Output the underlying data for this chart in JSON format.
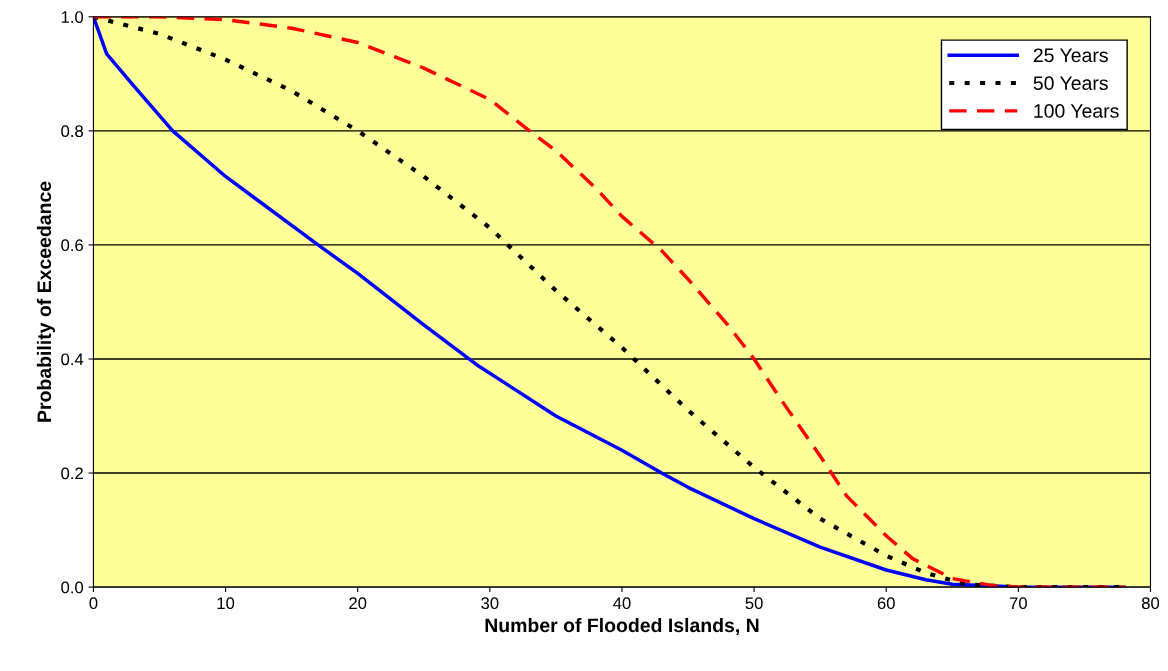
{
  "chart_data": {
    "type": "line",
    "xlabel": "Number of Flooded Islands, N",
    "ylabel": "Probability of Exceedance",
    "xlim": [
      0,
      80
    ],
    "xticks": [
      0,
      10,
      20,
      30,
      40,
      50,
      60,
      70,
      80
    ],
    "ylim": [
      0,
      1
    ],
    "yticks": [
      {
        "value": 0,
        "label": "0.0"
      },
      {
        "value": 0.2,
        "label": "0.2"
      },
      {
        "value": 0.4,
        "label": "0.4"
      },
      {
        "value": 0.6,
        "label": "0.6"
      },
      {
        "value": 0.8,
        "label": "0.8"
      },
      {
        "value": 1,
        "label": "1.0"
      }
    ],
    "grid": "y",
    "legend": "top right",
    "series": [
      {
        "name": "25 Years",
        "color": "#0000ff",
        "line_style": "solid",
        "x": [
          0,
          1,
          3,
          6,
          10,
          17,
          20,
          25,
          29,
          35,
          40,
          43,
          45,
          50,
          55,
          60,
          63,
          65,
          70,
          78
        ],
        "values": [
          1.0,
          0.935,
          0.88,
          0.8,
          0.72,
          0.6,
          0.55,
          0.46,
          0.39,
          0.3,
          0.24,
          0.2,
          0.175,
          0.12,
          0.07,
          0.03,
          0.013,
          0.005,
          0.0,
          0.0
        ]
      },
      {
        "name": "50 Years",
        "color": "#000000",
        "line_style": "dotted",
        "x": [
          0,
          5,
          10,
          15,
          20,
          25,
          30,
          35,
          40,
          45,
          50,
          55,
          60,
          63,
          66,
          70,
          78
        ],
        "values": [
          1.0,
          0.97,
          0.925,
          0.87,
          0.8,
          0.72,
          0.63,
          0.52,
          0.42,
          0.31,
          0.21,
          0.12,
          0.055,
          0.025,
          0.005,
          0.0,
          0.0
        ]
      },
      {
        "name": "100 Years",
        "color": "#ff0000",
        "line_style": "dashed",
        "x": [
          0,
          5,
          10,
          15,
          20,
          25,
          30,
          33,
          35,
          38,
          40,
          43,
          45,
          48,
          50,
          52,
          55,
          57,
          60,
          62,
          65,
          68,
          70,
          78
        ],
        "values": [
          1.0,
          1.0,
          0.995,
          0.98,
          0.955,
          0.91,
          0.855,
          0.8,
          0.765,
          0.7,
          0.65,
          0.59,
          0.54,
          0.46,
          0.4,
          0.33,
          0.23,
          0.16,
          0.09,
          0.05,
          0.015,
          0.003,
          0.0,
          0.0
        ]
      }
    ]
  }
}
